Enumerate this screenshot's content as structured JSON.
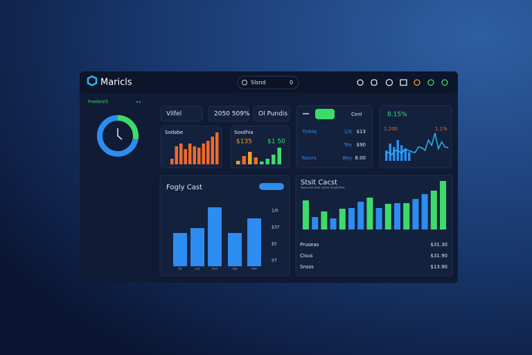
{
  "header": {
    "logo": "Maricls",
    "search": "Slsnd",
    "search_count": "0"
  },
  "sidebar": {
    "label": "Pnedsrsl3",
    "donut": {
      "values": [
        28,
        72
      ],
      "colors": [
        "#3ddc6a",
        "#2d8cf0"
      ]
    }
  },
  "stats": [
    {
      "label": "Vilfel"
    },
    {
      "label": "2050 509%"
    },
    {
      "label": "Ol Pundis"
    }
  ],
  "sales": {
    "title": "Sodabe",
    "values": [
      8,
      26,
      30,
      22,
      30,
      26,
      24,
      30,
      34,
      40,
      46
    ],
    "color": "#f06a2a"
  },
  "spend": {
    "title": "Sosdhia",
    "labels": [
      "$135",
      "$1 50"
    ],
    "values": [
      5,
      12,
      18,
      10,
      4,
      8,
      14,
      24
    ],
    "colors": [
      "#f0a02a",
      "#f06a2a",
      "#f0a02a",
      "#f06a2a",
      "#3ddc6a",
      "#3ddc6a",
      "#3ddc6a",
      "#3ddc6a"
    ]
  },
  "tasks": {
    "label": "Cenl",
    "rows": [
      [
        "Tinkiq",
        "1/S",
        "$13"
      ],
      [
        "Tex",
        "$90"
      ],
      [
        "Nunrs",
        "Bey",
        "8.00"
      ]
    ]
  },
  "trend": {
    "value": "8.15%",
    "labels": [
      "1.200",
      "1.1%"
    ],
    "line": [
      20,
      25,
      18,
      30,
      28,
      22,
      35,
      30,
      26,
      24,
      40,
      38,
      30,
      60,
      45,
      80,
      35,
      55,
      40,
      38
    ],
    "bars": [
      30,
      50,
      40,
      60,
      45,
      35,
      25
    ]
  },
  "forecast": {
    "title": "Fogly Cast",
    "values": [
      48,
      55,
      85,
      48,
      69
    ],
    "ticks": [
      "1/0",
      "$37",
      "$5",
      "57"
    ],
    "categories": [
      "Tal",
      "Lot",
      "Rnd",
      "Lbe",
      "Aolt"
    ]
  },
  "costs": {
    "title": "Stsit Cacst",
    "subtitle": "Sosocnst stsst sstsst Sosdt Bsst",
    "values": [
      42,
      18,
      26,
      16,
      30,
      31,
      40,
      46,
      31,
      37,
      38,
      38,
      44,
      51,
      56,
      70
    ],
    "colors": [
      "#3ddc6a",
      "#2d8cf0",
      "#3ddc6a",
      "#2d8cf0",
      "#3ddc6a",
      "#2d8cf0",
      "#2d8cf0",
      "#3ddc6a",
      "#2d8cf0",
      "#3ddc6a",
      "#2d8cf0",
      "#3ddc6a",
      "#2d8cf0",
      "#2d8cf0",
      "#3ddc6a",
      "#3ddc6a"
    ],
    "rows": [
      [
        "Pruseas",
        "$31.30"
      ],
      [
        "Cisus",
        "$31.90"
      ],
      [
        "Snsss",
        "$13.90"
      ]
    ]
  }
}
